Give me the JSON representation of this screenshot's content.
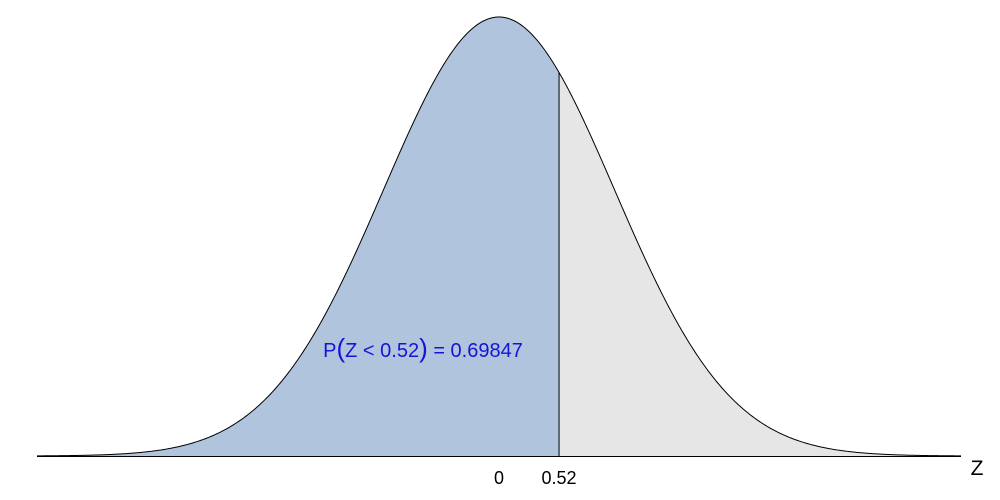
{
  "chart_data": {
    "type": "area",
    "distribution": "standard normal",
    "mean": 0,
    "sd": 1,
    "xlim": [
      -4,
      4
    ],
    "cutoff": 0.52,
    "xlabel": "Z",
    "ylabel": "",
    "title": "",
    "ticks": [
      {
        "value": 0,
        "label": "0"
      },
      {
        "value": 0.52,
        "label": "0.52"
      }
    ],
    "annotation": {
      "prefix": "P",
      "open_paren": "(",
      "expression": "Z < 0.52",
      "close_paren": ")",
      "suffix": " = 0.69847",
      "probability": 0.69847
    },
    "grid": false,
    "legend": "none"
  },
  "colors": {
    "shaded_region": "#b0c4de",
    "unshaded_region": "#e6e6e6",
    "curve": "#000000",
    "axis": "#000000",
    "annotation_text": "#1515d6"
  }
}
